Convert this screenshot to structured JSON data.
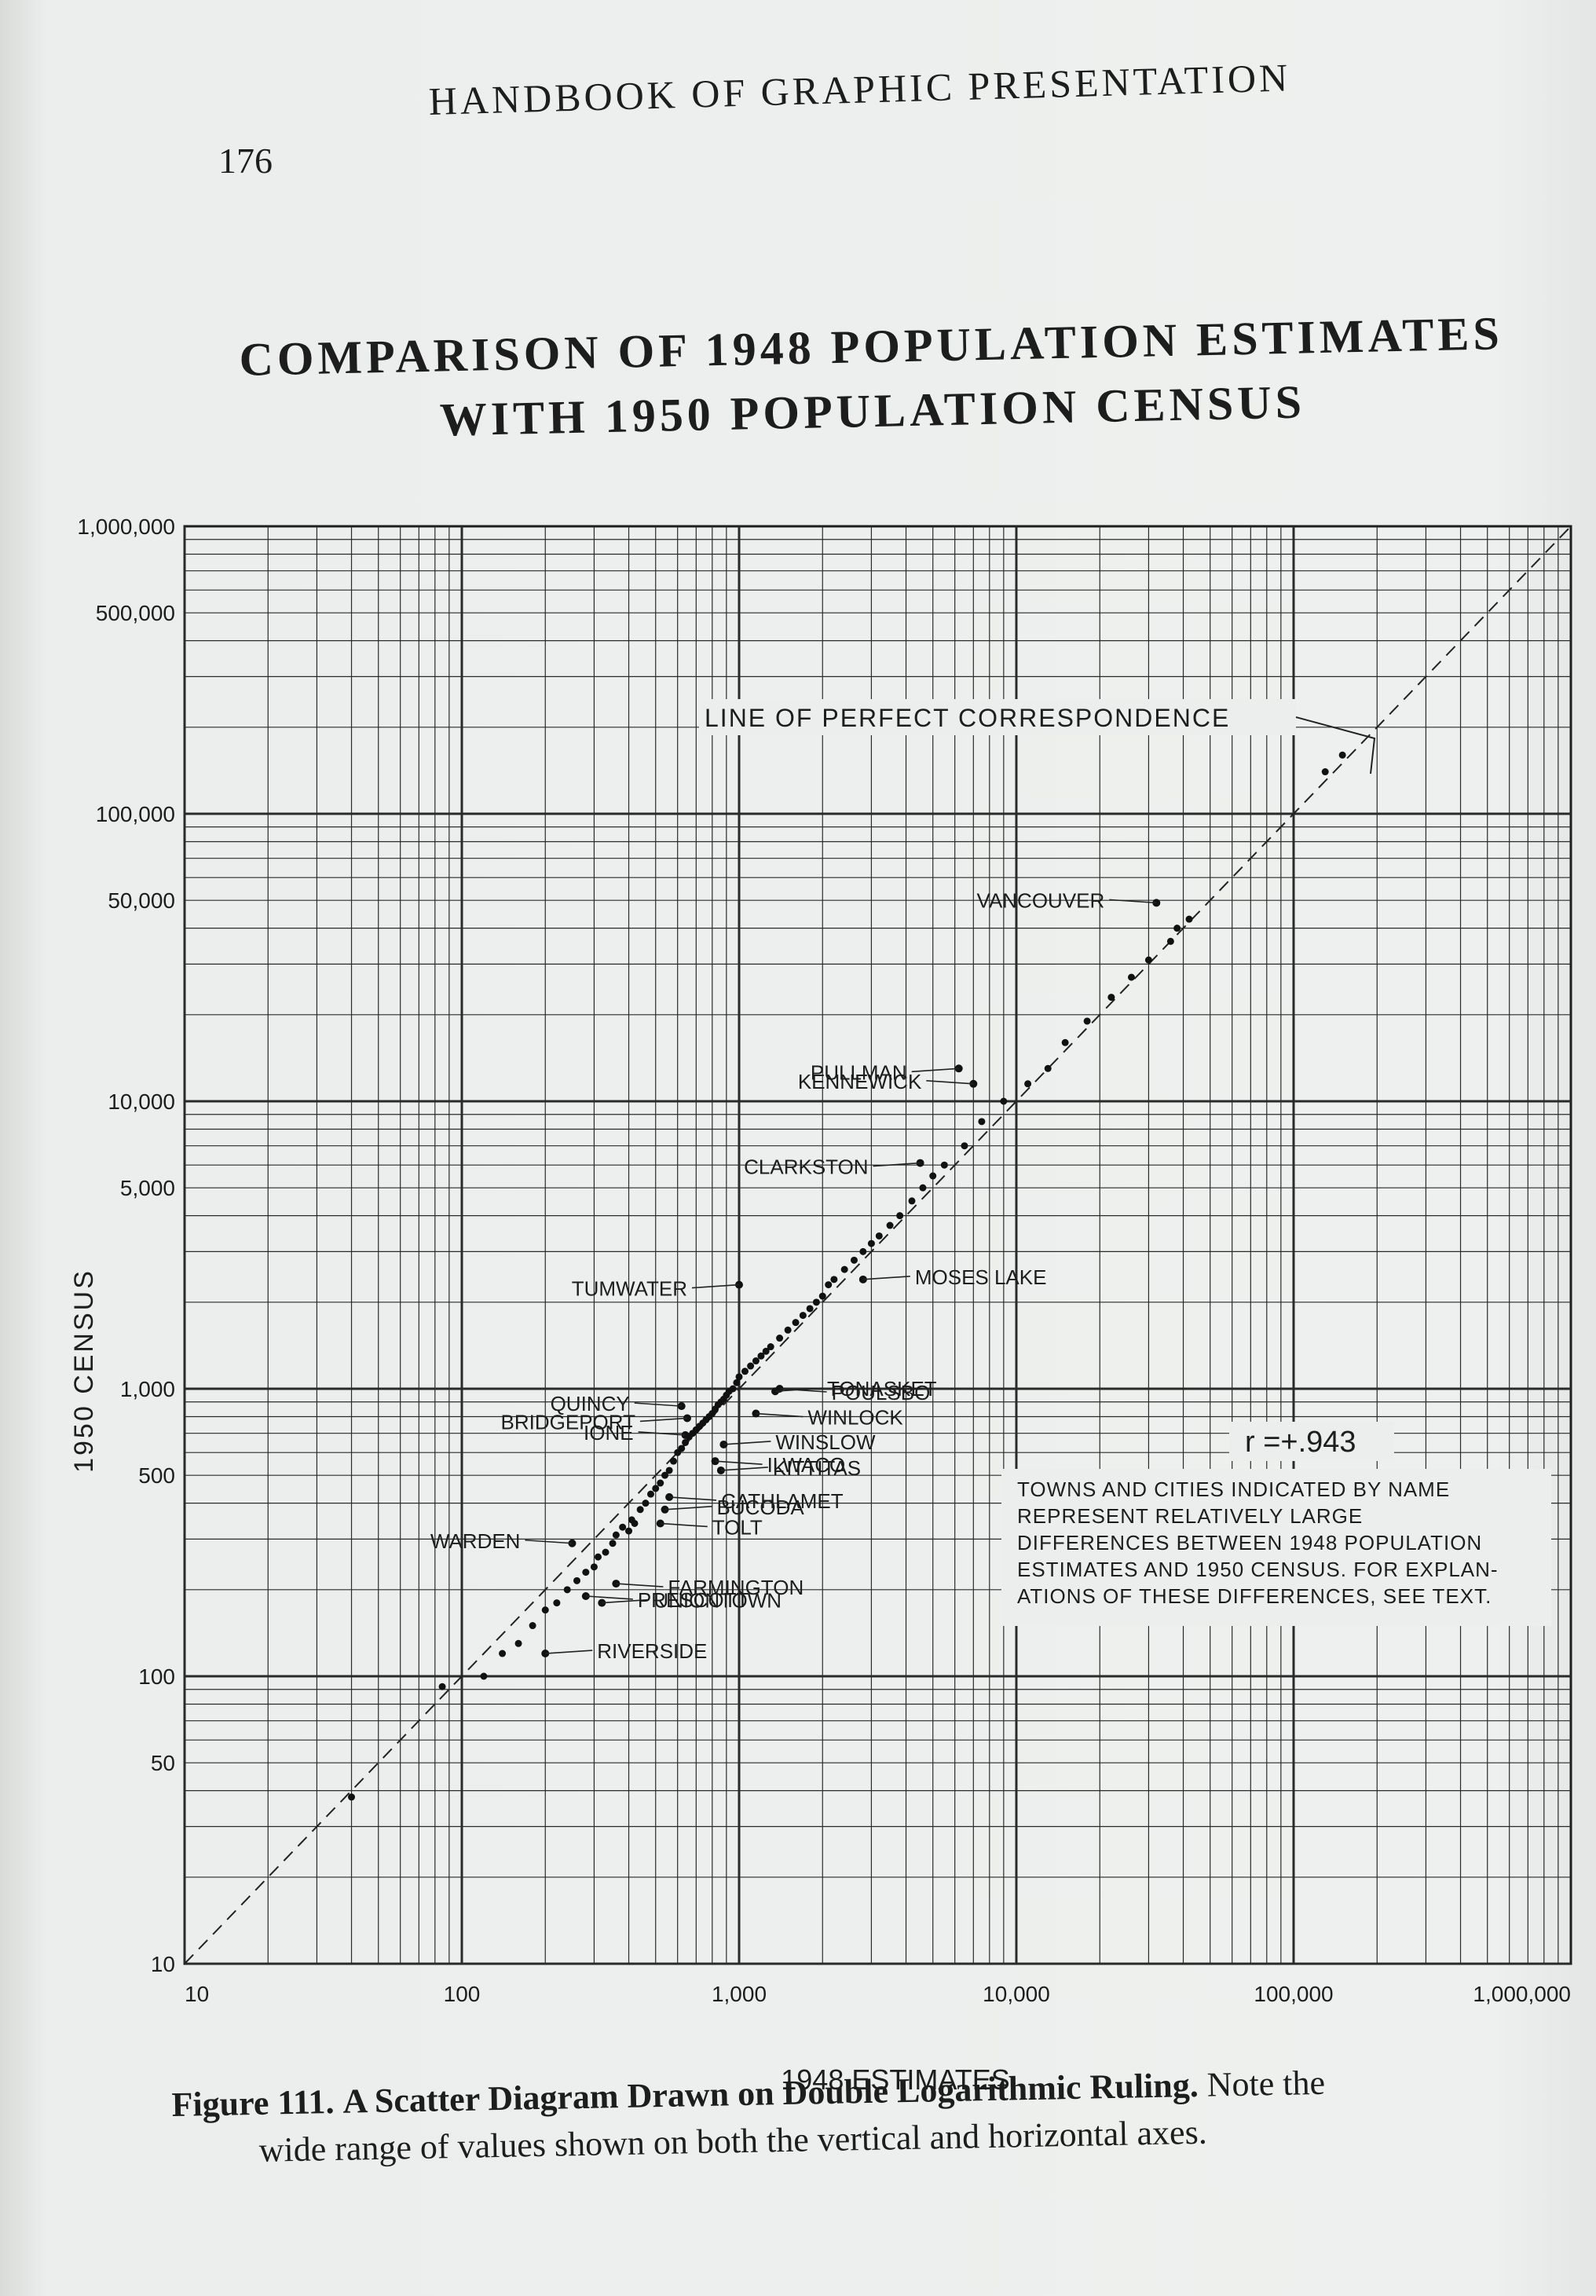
{
  "page": {
    "number": "176",
    "running_head": "HANDBOOK OF GRAPHIC PRESENTATION"
  },
  "caption": {
    "label": "Figure 111.",
    "title": "A Scatter Diagram Drawn on Double Logarithmic Ruling.",
    "note_part1": "Note the",
    "note_part2": "wide range of values shown on both the vertical and horizontal axes."
  },
  "chart_data": {
    "type": "scatter",
    "title_line1": "COMPARISON OF 1948 POPULATION ESTIMATES",
    "title_line2": "WITH 1950 POPULATION CENSUS",
    "xlabel": "1948 ESTIMATES",
    "ylabel": "1950 CENSUS",
    "x_scale": "log",
    "y_scale": "log",
    "xlim": [
      10,
      1000000
    ],
    "ylim": [
      10,
      1000000
    ],
    "grid": true,
    "x_ticks": [
      {
        "value": 10,
        "label": "10"
      },
      {
        "value": 100,
        "label": "100"
      },
      {
        "value": 1000,
        "label": "1,000"
      },
      {
        "value": 10000,
        "label": "10,000"
      },
      {
        "value": 100000,
        "label": "100,000"
      },
      {
        "value": 1000000,
        "label": "1,000,000"
      }
    ],
    "y_ticks": [
      {
        "value": 10,
        "label": "10"
      },
      {
        "value": 50,
        "label": "50"
      },
      {
        "value": 100,
        "label": "100"
      },
      {
        "value": 500,
        "label": "500"
      },
      {
        "value": 1000,
        "label": "1,000"
      },
      {
        "value": 5000,
        "label": "5,000"
      },
      {
        "value": 10000,
        "label": "10,000"
      },
      {
        "value": 50000,
        "label": "50,000"
      },
      {
        "value": 100000,
        "label": "100,000"
      },
      {
        "value": 500000,
        "label": "500,000"
      },
      {
        "value": 1000000,
        "label": "1,000,000"
      }
    ],
    "reference_line": {
      "label": "LINE OF PERFECT CORRESPONDENCE",
      "from": [
        10,
        10
      ],
      "to": [
        1000000,
        1000000
      ]
    },
    "correlation_label": "r =+.943",
    "note_lines": [
      "TOWNS AND CITIES INDICATED BY NAME",
      "REPRESENT RELATIVELY LARGE",
      "DIFFERENCES BETWEEN 1948 POPULATION",
      "ESTIMATES AND 1950 CENSUS. FOR EXPLAN-",
      "ATIONS OF THESE DIFFERENCES, SEE TEXT."
    ],
    "named_points": [
      {
        "name": "VANCOUVER",
        "x": 32000,
        "y": 49000
      },
      {
        "name": "PULLMAN",
        "x": 6200,
        "y": 13000
      },
      {
        "name": "KENNEWICK",
        "x": 7000,
        "y": 11500
      },
      {
        "name": "CLARKSTON",
        "x": 4500,
        "y": 6100
      },
      {
        "name": "MOSES LAKE",
        "x": 2800,
        "y": 2400
      },
      {
        "name": "TUMWATER",
        "x": 1000,
        "y": 2300
      },
      {
        "name": "QUINCY",
        "x": 620,
        "y": 870
      },
      {
        "name": "BRIDGEPORT",
        "x": 650,
        "y": 790
      },
      {
        "name": "IONE",
        "x": 640,
        "y": 690
      },
      {
        "name": "POULSBO",
        "x": 1400,
        "y": 1000
      },
      {
        "name": "TONASKET",
        "x": 1350,
        "y": 980
      },
      {
        "name": "WINLOCK",
        "x": 1150,
        "y": 820
      },
      {
        "name": "WINSLOW",
        "x": 880,
        "y": 640
      },
      {
        "name": "ILWACO",
        "x": 820,
        "y": 560
      },
      {
        "name": "KITTITAS",
        "x": 860,
        "y": 520
      },
      {
        "name": "CATHLAMET",
        "x": 560,
        "y": 420
      },
      {
        "name": "BUCODA",
        "x": 540,
        "y": 380
      },
      {
        "name": "TOLT",
        "x": 520,
        "y": 340
      },
      {
        "name": "WARDEN",
        "x": 250,
        "y": 290
      },
      {
        "name": "FARMINGTON",
        "x": 360,
        "y": 210
      },
      {
        "name": "UNIONTOWN",
        "x": 320,
        "y": 180
      },
      {
        "name": "PRESCOTT",
        "x": 280,
        "y": 190
      },
      {
        "name": "RIVERSIDE",
        "x": 200,
        "y": 120
      }
    ],
    "points": [
      [
        40,
        38
      ],
      [
        85,
        92
      ],
      [
        120,
        100
      ],
      [
        140,
        120
      ],
      [
        160,
        130
      ],
      [
        180,
        150
      ],
      [
        200,
        170
      ],
      [
        220,
        180
      ],
      [
        240,
        200
      ],
      [
        260,
        215
      ],
      [
        280,
        230
      ],
      [
        300,
        240
      ],
      [
        310,
        260
      ],
      [
        330,
        270
      ],
      [
        350,
        290
      ],
      [
        360,
        310
      ],
      [
        380,
        330
      ],
      [
        400,
        320
      ],
      [
        410,
        350
      ],
      [
        420,
        340
      ],
      [
        440,
        380
      ],
      [
        460,
        400
      ],
      [
        480,
        430
      ],
      [
        500,
        450
      ],
      [
        520,
        470
      ],
      [
        540,
        500
      ],
      [
        560,
        520
      ],
      [
        580,
        560
      ],
      [
        600,
        600
      ],
      [
        620,
        620
      ],
      [
        640,
        650
      ],
      [
        660,
        680
      ],
      [
        680,
        700
      ],
      [
        700,
        720
      ],
      [
        720,
        740
      ],
      [
        740,
        760
      ],
      [
        760,
        780
      ],
      [
        780,
        800
      ],
      [
        800,
        820
      ],
      [
        820,
        850
      ],
      [
        840,
        880
      ],
      [
        860,
        900
      ],
      [
        880,
        920
      ],
      [
        900,
        950
      ],
      [
        920,
        980
      ],
      [
        950,
        1000
      ],
      [
        980,
        1050
      ],
      [
        1000,
        1100
      ],
      [
        1050,
        1150
      ],
      [
        1100,
        1200
      ],
      [
        1150,
        1250
      ],
      [
        1200,
        1300
      ],
      [
        1250,
        1350
      ],
      [
        1300,
        1400
      ],
      [
        1400,
        1500
      ],
      [
        1500,
        1600
      ],
      [
        1600,
        1700
      ],
      [
        1700,
        1800
      ],
      [
        1800,
        1900
      ],
      [
        1900,
        2000
      ],
      [
        2000,
        2100
      ],
      [
        2100,
        2300
      ],
      [
        2200,
        2400
      ],
      [
        2400,
        2600
      ],
      [
        2600,
        2800
      ],
      [
        2800,
        3000
      ],
      [
        3000,
        3200
      ],
      [
        3200,
        3400
      ],
      [
        3500,
        3700
      ],
      [
        3800,
        4000
      ],
      [
        4200,
        4500
      ],
      [
        4600,
        5000
      ],
      [
        5000,
        5500
      ],
      [
        5500,
        6000
      ],
      [
        6500,
        7000
      ],
      [
        7500,
        8500
      ],
      [
        9000,
        10000
      ],
      [
        11000,
        11500
      ],
      [
        13000,
        13000
      ],
      [
        15000,
        16000
      ],
      [
        18000,
        19000
      ],
      [
        22000,
        23000
      ],
      [
        26000,
        27000
      ],
      [
        30000,
        31000
      ],
      [
        36000,
        36000
      ],
      [
        38000,
        40000
      ],
      [
        42000,
        43000
      ],
      [
        130000,
        140000
      ],
      [
        150000,
        160000
      ]
    ]
  }
}
